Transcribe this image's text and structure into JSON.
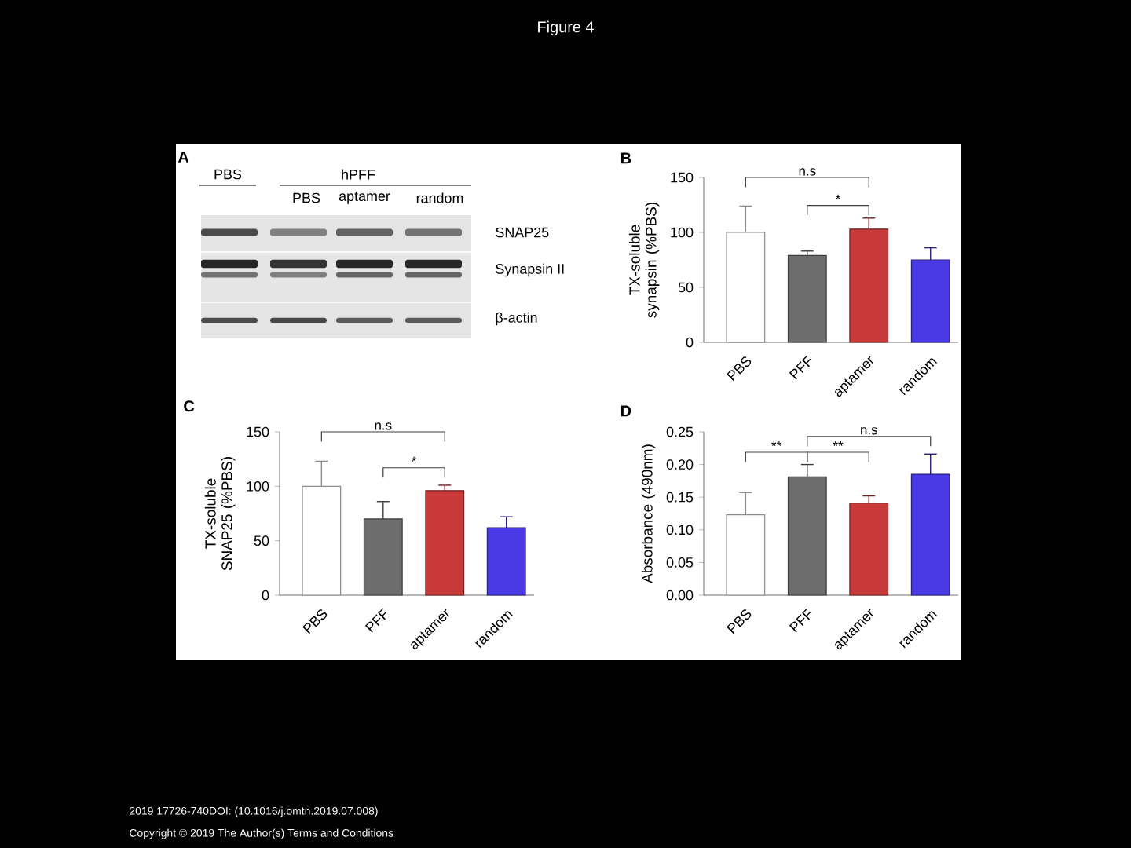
{
  "chart_data": [
    {
      "type": "other",
      "title": "Figure 4",
      "annotations": [
        "2019 17726-740DOI: (10.1016/j.omtn.2019.07.008)",
        "Copyright © 2019 The Author(s) Terms and Conditions"
      ]
    },
    {
      "type": "other",
      "title": "A",
      "annotations": [
        "PBS",
        "hPFF",
        "PBS",
        "aptamer",
        "random",
        "SNAP25",
        "Synapsin II",
        "β-actin"
      ]
    },
    {
      "type": "bar",
      "title": "B",
      "ylabel": "TX-soluble synapsin (%PBS)",
      "categories": [
        "PBS",
        "PFF",
        "aptamer",
        "random"
      ],
      "values": [
        100,
        79,
        103,
        75
      ],
      "errors": [
        [
          100,
          124
        ],
        [
          79,
          83
        ],
        [
          103,
          113
        ],
        [
          75,
          86
        ]
      ],
      "colors": [
        "#ffffff",
        "#6d6d6d",
        "#c83a3a",
        "#4a3ae6"
      ],
      "ylim": [
        0,
        150
      ],
      "yticks": [
        0,
        50,
        100,
        150
      ],
      "annotations": [
        "n.s",
        "*"
      ]
    },
    {
      "type": "bar",
      "title": "C",
      "ylabel": "TX-soluble SNAP25 (%PBS)",
      "categories": [
        "PBS",
        "PFF",
        "aptamer",
        "random"
      ],
      "values": [
        100,
        70,
        96,
        62
      ],
      "errors": [
        [
          100,
          123
        ],
        [
          70,
          86
        ],
        [
          96,
          101
        ],
        [
          62,
          72
        ]
      ],
      "colors": [
        "#ffffff",
        "#6d6d6d",
        "#c83a3a",
        "#4a3ae6"
      ],
      "ylim": [
        0,
        150
      ],
      "yticks": [
        0,
        50,
        100,
        150
      ],
      "annotations": [
        "n.s",
        "*"
      ]
    },
    {
      "type": "bar",
      "title": "D",
      "ylabel": "Absorbance (490nm)",
      "categories": [
        "PBS",
        "PFF",
        "aptamer",
        "random"
      ],
      "values": [
        0.123,
        0.181,
        0.141,
        0.185
      ],
      "errors": [
        [
          0.123,
          0.157
        ],
        [
          0.181,
          0.2
        ],
        [
          0.141,
          0.152
        ],
        [
          0.185,
          0.216
        ]
      ],
      "colors": [
        "#ffffff",
        "#6d6d6d",
        "#c83a3a",
        "#4a3ae6"
      ],
      "ylim": [
        0,
        0.25
      ],
      "yticks": [
        {
          "value": 0,
          "label": "0.00"
        },
        {
          "value": 0.05,
          "label": "0.05"
        },
        {
          "value": 0.1,
          "label": "0.10"
        },
        {
          "value": 0.15,
          "label": "0.15"
        },
        {
          "value": 0.2,
          "label": "0.20"
        },
        {
          "value": 0.25,
          "label": "0.25"
        }
      ],
      "annotations": [
        "**",
        "**",
        "n.s"
      ]
    }
  ]
}
